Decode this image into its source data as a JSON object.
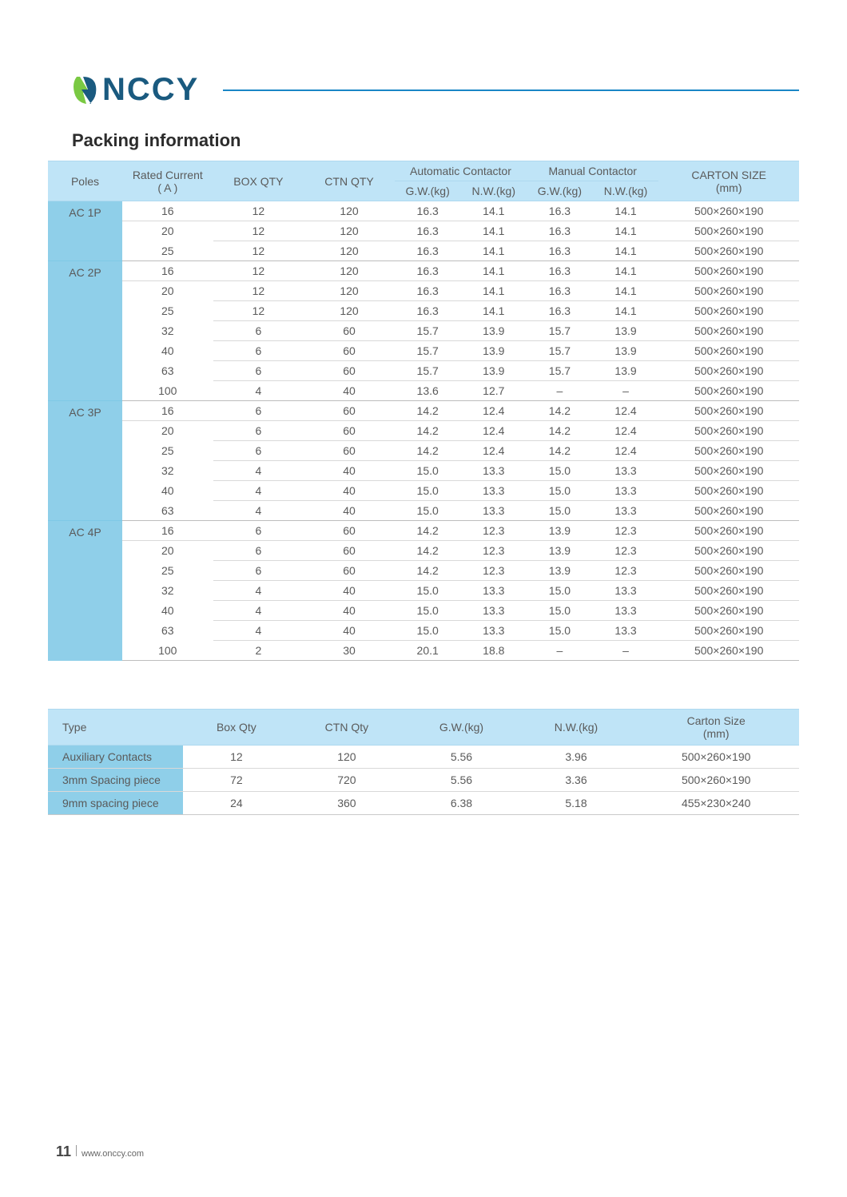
{
  "brand": {
    "name": "NCCY"
  },
  "section_title": "Packing information",
  "footer": {
    "page": "11",
    "url": "www.onccy.com"
  },
  "packing": {
    "headers": {
      "poles": "Poles",
      "rated_current": "Rated Current",
      "rated_current_unit": "( A )",
      "box_qty": "BOX QTY",
      "ctn_qty": "CTN QTY",
      "auto": "Automatic Contactor",
      "manual": "Manual Contactor",
      "gw": "G.W.(kg)",
      "nw": "N.W.(kg)",
      "carton": "CARTON SIZE",
      "carton_unit": "(mm)"
    },
    "groups": [
      {
        "pole": "AC 1P",
        "rows": [
          {
            "current": "16",
            "box": "12",
            "ctn": "120",
            "agw": "16.3",
            "anw": "14.1",
            "mgw": "16.3",
            "mnw": "14.1",
            "carton": "500×260×190"
          },
          {
            "current": "20",
            "box": "12",
            "ctn": "120",
            "agw": "16.3",
            "anw": "14.1",
            "mgw": "16.3",
            "mnw": "14.1",
            "carton": "500×260×190"
          },
          {
            "current": "25",
            "box": "12",
            "ctn": "120",
            "agw": "16.3",
            "anw": "14.1",
            "mgw": "16.3",
            "mnw": "14.1",
            "carton": "500×260×190"
          }
        ]
      },
      {
        "pole": "AC 2P",
        "rows": [
          {
            "current": "16",
            "box": "12",
            "ctn": "120",
            "agw": "16.3",
            "anw": "14.1",
            "mgw": "16.3",
            "mnw": "14.1",
            "carton": "500×260×190"
          },
          {
            "current": "20",
            "box": "12",
            "ctn": "120",
            "agw": "16.3",
            "anw": "14.1",
            "mgw": "16.3",
            "mnw": "14.1",
            "carton": "500×260×190"
          },
          {
            "current": "25",
            "box": "12",
            "ctn": "120",
            "agw": "16.3",
            "anw": "14.1",
            "mgw": "16.3",
            "mnw": "14.1",
            "carton": "500×260×190"
          },
          {
            "current": "32",
            "box": "6",
            "ctn": "60",
            "agw": "15.7",
            "anw": "13.9",
            "mgw": "15.7",
            "mnw": "13.9",
            "carton": "500×260×190"
          },
          {
            "current": "40",
            "box": "6",
            "ctn": "60",
            "agw": "15.7",
            "anw": "13.9",
            "mgw": "15.7",
            "mnw": "13.9",
            "carton": "500×260×190"
          },
          {
            "current": "63",
            "box": "6",
            "ctn": "60",
            "agw": "15.7",
            "anw": "13.9",
            "mgw": "15.7",
            "mnw": "13.9",
            "carton": "500×260×190"
          },
          {
            "current": "100",
            "box": "4",
            "ctn": "40",
            "agw": "13.6",
            "anw": "12.7",
            "mgw": "–",
            "mnw": "–",
            "carton": "500×260×190"
          }
        ]
      },
      {
        "pole": "AC 3P",
        "rows": [
          {
            "current": "16",
            "box": "6",
            "ctn": "60",
            "agw": "14.2",
            "anw": "12.4",
            "mgw": "14.2",
            "mnw": "12.4",
            "carton": "500×260×190"
          },
          {
            "current": "20",
            "box": "6",
            "ctn": "60",
            "agw": "14.2",
            "anw": "12.4",
            "mgw": "14.2",
            "mnw": "12.4",
            "carton": "500×260×190"
          },
          {
            "current": "25",
            "box": "6",
            "ctn": "60",
            "agw": "14.2",
            "anw": "12.4",
            "mgw": "14.2",
            "mnw": "12.4",
            "carton": "500×260×190"
          },
          {
            "current": "32",
            "box": "4",
            "ctn": "40",
            "agw": "15.0",
            "anw": "13.3",
            "mgw": "15.0",
            "mnw": "13.3",
            "carton": "500×260×190"
          },
          {
            "current": "40",
            "box": "4",
            "ctn": "40",
            "agw": "15.0",
            "anw": "13.3",
            "mgw": "15.0",
            "mnw": "13.3",
            "carton": "500×260×190"
          },
          {
            "current": "63",
            "box": "4",
            "ctn": "40",
            "agw": "15.0",
            "anw": "13.3",
            "mgw": "15.0",
            "mnw": "13.3",
            "carton": "500×260×190"
          }
        ]
      },
      {
        "pole": "AC 4P",
        "rows": [
          {
            "current": "16",
            "box": "6",
            "ctn": "60",
            "agw": "14.2",
            "anw": "12.3",
            "mgw": "13.9",
            "mnw": "12.3",
            "carton": "500×260×190"
          },
          {
            "current": "20",
            "box": "6",
            "ctn": "60",
            "agw": "14.2",
            "anw": "12.3",
            "mgw": "13.9",
            "mnw": "12.3",
            "carton": "500×260×190"
          },
          {
            "current": "25",
            "box": "6",
            "ctn": "60",
            "agw": "14.2",
            "anw": "12.3",
            "mgw": "13.9",
            "mnw": "12.3",
            "carton": "500×260×190"
          },
          {
            "current": "32",
            "box": "4",
            "ctn": "40",
            "agw": "15.0",
            "anw": "13.3",
            "mgw": "15.0",
            "mnw": "13.3",
            "carton": "500×260×190"
          },
          {
            "current": "40",
            "box": "4",
            "ctn": "40",
            "agw": "15.0",
            "anw": "13.3",
            "mgw": "15.0",
            "mnw": "13.3",
            "carton": "500×260×190"
          },
          {
            "current": "63",
            "box": "4",
            "ctn": "40",
            "agw": "15.0",
            "anw": "13.3",
            "mgw": "15.0",
            "mnw": "13.3",
            "carton": "500×260×190"
          },
          {
            "current": "100",
            "box": "2",
            "ctn": "30",
            "agw": "20.1",
            "anw": "18.8",
            "mgw": "–",
            "mnw": "–",
            "carton": "500×260×190"
          }
        ]
      }
    ]
  },
  "accessories": {
    "headers": {
      "type": "Type",
      "box": "Box Qty",
      "ctn": "CTN Qty",
      "gw": "G.W.(kg)",
      "nw": "N.W.(kg)",
      "carton": "Carton Size",
      "carton_unit": "(mm)"
    },
    "rows": [
      {
        "type": "Auxiliary Contacts",
        "box": "12",
        "ctn": "120",
        "gw": "5.56",
        "nw": "3.96",
        "carton": "500×260×190"
      },
      {
        "type": "3mm Spacing piece",
        "box": "72",
        "ctn": "720",
        "gw": "5.56",
        "nw": "3.36",
        "carton": "500×260×190"
      },
      {
        "type": "9mm spacing piece",
        "box": "24",
        "ctn": "360",
        "gw": "6.38",
        "nw": "5.18",
        "carton": "455×230×240"
      }
    ]
  },
  "style": {
    "header_bg": "#bfe4f7",
    "pole_bg": "#8fcfe9",
    "accent_line": "#1a86c6",
    "logo_navy": "#1a5a7f",
    "logo_green": "#7ac943"
  }
}
